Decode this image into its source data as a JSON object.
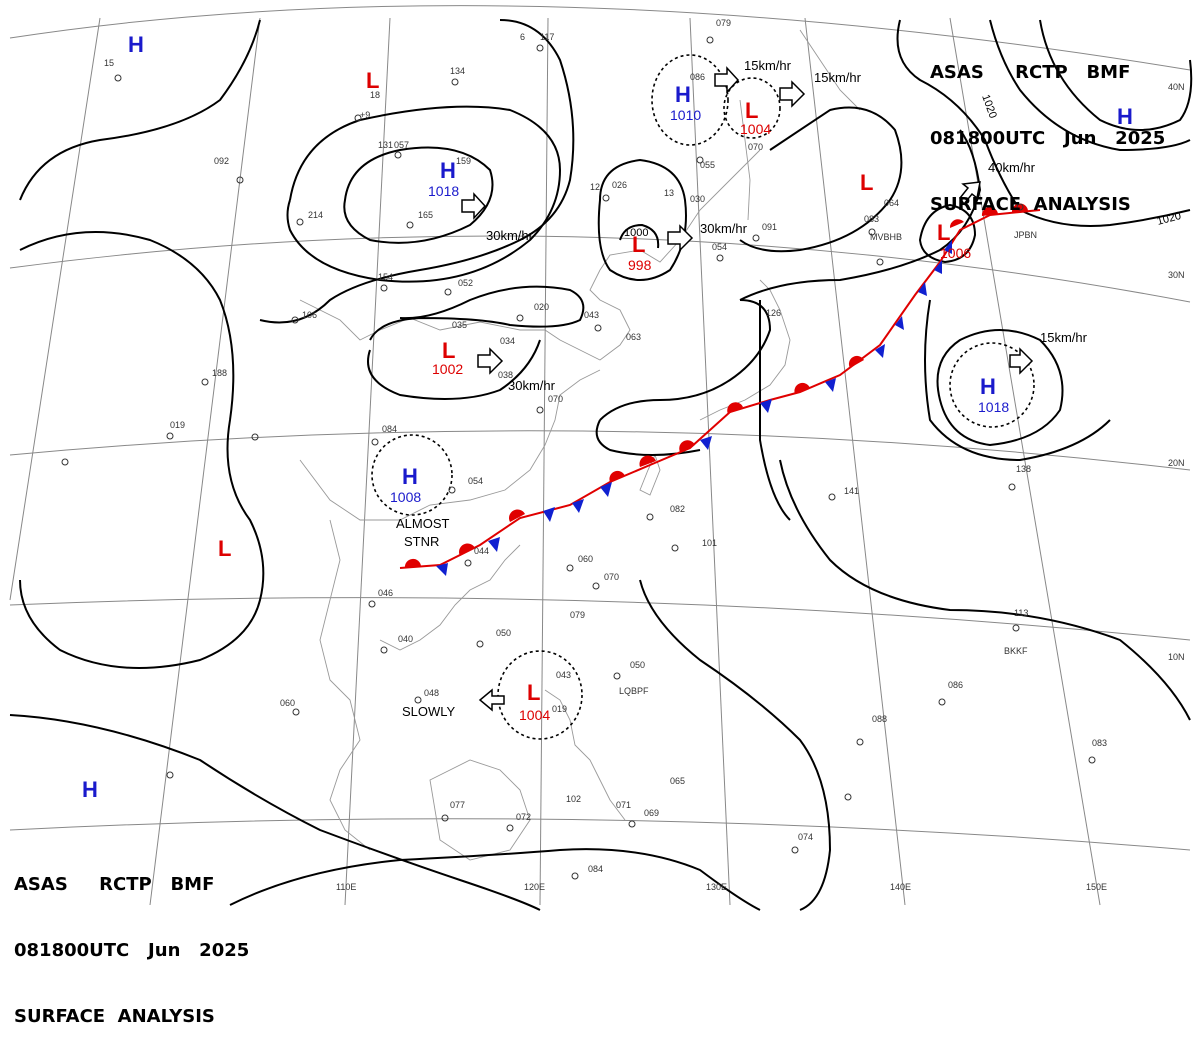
{
  "header": {
    "line1": "ASAS     RCTP   BMF",
    "line2": "081800UTC   Jun   2025",
    "line3": "SURFACE  ANALYSIS"
  },
  "colors": {
    "high": "#1a1acc",
    "low": "#dd0000",
    "front_red": "#e00000",
    "front_blue": "#1020d0",
    "isobar": "#000000",
    "grid": "#888888",
    "coast": "#999999"
  },
  "pressure_centers": [
    {
      "type": "H",
      "label": "H",
      "value": ""
    },
    {
      "type": "L",
      "label": "L",
      "value": ""
    },
    {
      "type": "H",
      "label": "H",
      "value": "1018"
    },
    {
      "type": "L",
      "label": "L",
      "value": "1002"
    },
    {
      "type": "H",
      "label": "H",
      "value": "1008"
    },
    {
      "type": "L",
      "label": "L",
      "value": ""
    },
    {
      "type": "H",
      "label": "H",
      "value": ""
    },
    {
      "type": "L",
      "label": "L",
      "value": "1004"
    },
    {
      "type": "L",
      "label": "L",
      "value": "998"
    },
    {
      "type": "H",
      "label": "H",
      "value": "1010"
    },
    {
      "type": "L",
      "label": "L",
      "value": "1004"
    },
    {
      "type": "L",
      "label": "L",
      "value": ""
    },
    {
      "type": "L",
      "label": "L",
      "value": "1006"
    },
    {
      "type": "H",
      "label": "H",
      "value": ""
    },
    {
      "type": "H",
      "label": "H",
      "value": "1018"
    }
  ],
  "motion_labels": [
    "30km/hr",
    "30km/hr",
    "30km/hr",
    "15km/hr",
    "15km/hr",
    "40km/hr",
    "15km/hr"
  ],
  "notes": [
    "ALMOST",
    "STNR",
    "SLOWLY",
    "1000"
  ],
  "isobar_labels": [
    "1020",
    "1020"
  ],
  "longitude_labels": [
    "110E",
    "120E",
    "130E",
    "140E",
    "150E"
  ],
  "latitude_labels": [
    "40N",
    "30N",
    "20N",
    "10N"
  ],
  "station_ids": [
    "JPBN",
    "BKKF",
    "LQBPF",
    "MVBHB"
  ],
  "station_labels": [
    "15",
    "131",
    "18",
    "057",
    "+9",
    "134",
    "6",
    "117",
    "079",
    "086",
    "13",
    "159",
    "12",
    "026",
    "055",
    "070",
    "092",
    "214",
    "165",
    "083",
    "030",
    "091",
    "064",
    "154",
    "052",
    "020",
    "043",
    "054",
    "035",
    "034",
    "063",
    "106",
    "188",
    "084",
    "038",
    "070",
    "019",
    "054",
    "082",
    "101",
    "141",
    "126",
    "138",
    "060",
    "044",
    "070",
    "046",
    "050",
    "040",
    "060",
    "048",
    "043",
    "019",
    "050",
    "086",
    "088",
    "083",
    "113",
    "079",
    "077",
    "072",
    "102",
    "071",
    "069",
    "065",
    "074",
    "084"
  ]
}
